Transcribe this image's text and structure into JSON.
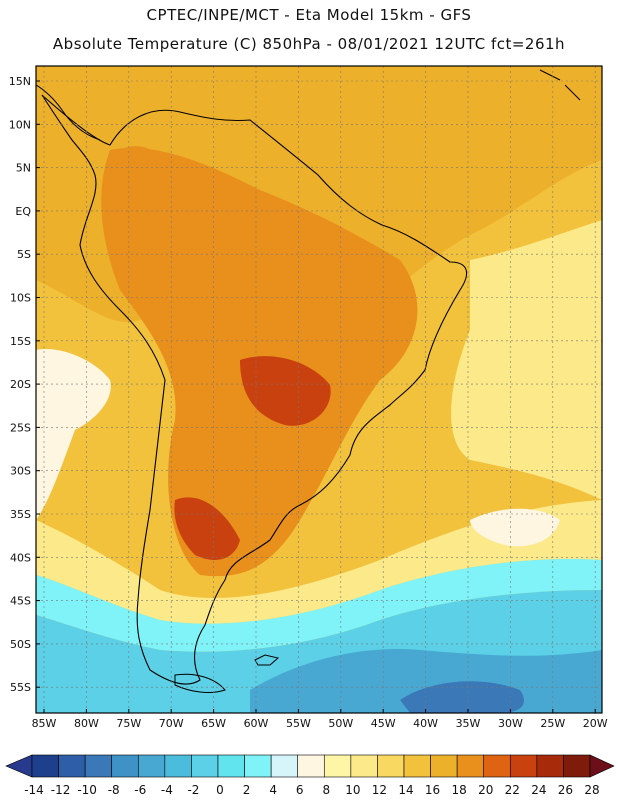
{
  "header": {
    "line1": "CPTEC/INPE/MCT -   Eta Model 15km - GFS",
    "line2": "Absolute Temperature (C) 850hPa - 08/01/2021 12UTC fct=261h"
  },
  "axes": {
    "lat_labels": [
      "15N",
      "10N",
      "5N",
      "EQ",
      "5S",
      "10S",
      "15S",
      "20S",
      "25S",
      "30S",
      "35S",
      "40S",
      "45S",
      "50S",
      "55S"
    ],
    "lon_labels": [
      "85W",
      "80W",
      "75W",
      "70W",
      "65W",
      "60W",
      "55W",
      "50W",
      "45W",
      "40W",
      "35W",
      "30W",
      "25W",
      "20W"
    ]
  },
  "colorbar": {
    "labels": [
      "-14",
      "-12",
      "-10",
      "-8",
      "-6",
      "-4",
      "-2",
      "0",
      "2",
      "4",
      "6",
      "8",
      "10",
      "12",
      "14",
      "16",
      "18",
      "20",
      "22",
      "24",
      "26",
      "28"
    ],
    "colors": [
      "#1d3f8c",
      "#2e5ea7",
      "#3a78b8",
      "#3f92c6",
      "#48a8d2",
      "#4cbcdc",
      "#5bd0e6",
      "#62e4ef",
      "#7ff3f7",
      "#d6f5fb",
      "#fff6e2",
      "#fdf6a6",
      "#fbe98a",
      "#f8d860",
      "#f2c23d",
      "#edb02b",
      "#e98f1c",
      "#de6414",
      "#c9410e",
      "#a72a0b",
      "#7e1b0b"
    ],
    "under_color": "#283a8e",
    "over_color": "#6d0e1b"
  },
  "palette": {
    "warm_deep": "#c9410e",
    "warm": "#e98f1c",
    "warm_light": "#edb02b",
    "yellow": "#f2c23d",
    "pale_yellow": "#fbe98a",
    "cream": "#fff6e2",
    "light_cyan": "#7ff3f7",
    "cyan": "#5bd0e6",
    "blue": "#48a8d2",
    "dark_blue": "#3a78b8",
    "coast": "#000000",
    "grid": "#777777"
  }
}
